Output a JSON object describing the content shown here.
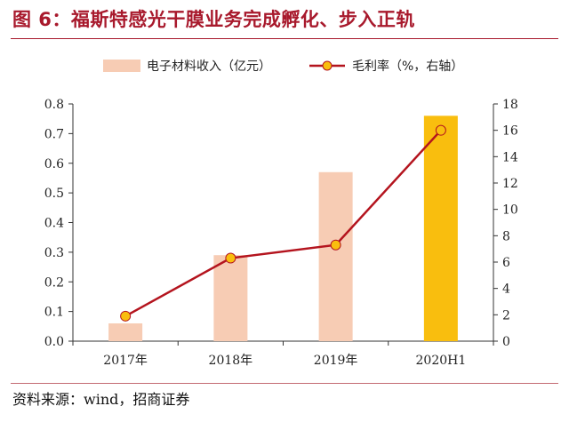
{
  "title": "图 6：福斯特感光干膜业务完成孵化、步入正轨",
  "source": "资料来源：wind，招商证券",
  "chart_data": {
    "type": "bar",
    "categories": [
      "2017年",
      "2018年",
      "2019年",
      "2020H1"
    ],
    "series": [
      {
        "name": "电子材料收入（亿元）",
        "type": "bar",
        "axis": "left",
        "values": [
          0.06,
          0.29,
          0.57,
          0.76
        ],
        "colors": [
          "#f7ccb4",
          "#f7ccb4",
          "#f7ccb4",
          "#f9be0e"
        ]
      },
      {
        "name": "毛利率（%，右轴）",
        "type": "line",
        "axis": "right",
        "values": [
          1.9,
          6.3,
          7.3,
          16.0
        ],
        "color": "#b4141e",
        "marker_color": "#f9be0e"
      }
    ],
    "y_left": {
      "ylim": [
        0,
        0.8
      ],
      "ticks": [
        "0.0",
        "0.1",
        "0.2",
        "0.3",
        "0.4",
        "0.5",
        "0.6",
        "0.7",
        "0.8"
      ]
    },
    "y_right": {
      "ylim": [
        0,
        18
      ],
      "ticks": [
        "0",
        "2",
        "4",
        "6",
        "8",
        "10",
        "12",
        "14",
        "16",
        "18"
      ]
    },
    "grid": false,
    "legend_position": "top"
  }
}
